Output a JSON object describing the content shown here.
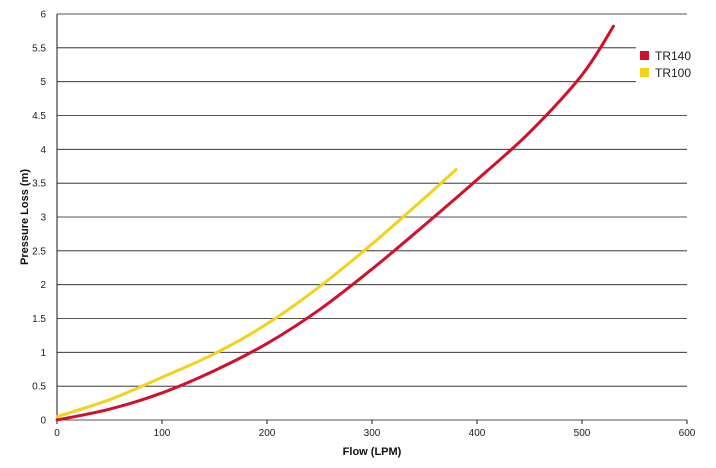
{
  "chart_data": {
    "type": "line",
    "title": "",
    "xlabel": "Flow (LPM)",
    "ylabel": "Pressure Loss (m)",
    "xlim": [
      0,
      600
    ],
    "ylim": [
      0,
      6
    ],
    "xticks": [
      0,
      100,
      200,
      300,
      400,
      500,
      600
    ],
    "xtick_labels": [
      "0",
      "100",
      "200",
      "300",
      "400",
      "500",
      "600"
    ],
    "yticks": [
      0,
      0.5,
      1,
      1.5,
      2,
      2.5,
      3,
      3.5,
      4,
      4.5,
      5,
      5.5,
      6
    ],
    "ytick_labels": [
      "0",
      "0.5",
      "1",
      "1.5",
      "2",
      "2.5",
      "3",
      "3.5",
      "4",
      "4.5",
      "5",
      "5.5",
      "6"
    ],
    "grid": "horizontal",
    "legend_position": "right",
    "series": [
      {
        "name": "TR140",
        "color": "#d0112b",
        "x": [
          0,
          50,
          100,
          150,
          200,
          250,
          300,
          350,
          400,
          450,
          500,
          530
        ],
        "y": [
          0.0,
          0.16,
          0.4,
          0.73,
          1.13,
          1.63,
          2.23,
          2.88,
          3.55,
          4.25,
          5.1,
          5.82
        ]
      },
      {
        "name": "TR100",
        "color": "#f2d21b",
        "x": [
          0,
          50,
          100,
          150,
          200,
          250,
          300,
          350,
          380
        ],
        "y": [
          0.05,
          0.3,
          0.63,
          0.98,
          1.42,
          1.97,
          2.6,
          3.28,
          3.7
        ]
      }
    ]
  }
}
